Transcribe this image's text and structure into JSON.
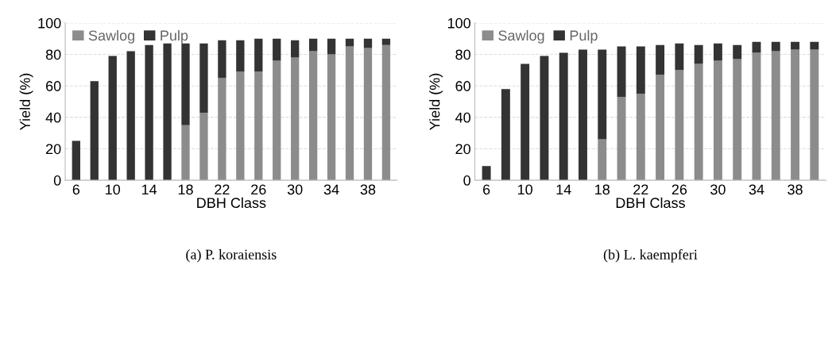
{
  "chart_data": [
    {
      "type": "bar",
      "stacked": true,
      "xlabel": "DBH Class",
      "ylabel": "Yield (%)",
      "annotations": [
        "(a) P. koraiensis"
      ],
      "categories": [
        "6",
        null,
        "10",
        null,
        "14",
        null,
        "18",
        null,
        "22",
        null,
        "26",
        null,
        "30",
        null,
        "34",
        null,
        "38",
        null
      ],
      "series": [
        {
          "name": "Sawlog",
          "color": "#8c8c8c",
          "values": [
            0,
            0,
            0,
            0,
            0,
            0,
            35,
            43,
            65,
            69,
            69,
            76,
            78,
            82,
            80,
            85,
            84,
            86
          ]
        },
        {
          "name": "Pulp",
          "color": "#333333",
          "values": [
            25,
            63,
            79,
            82,
            86,
            87,
            52,
            44,
            24,
            20,
            21,
            14,
            11,
            8,
            10,
            5,
            6,
            4
          ]
        }
      ],
      "ylim": [
        0,
        100
      ],
      "yticks": [
        0,
        20,
        40,
        60,
        80,
        100
      ],
      "grid": "y",
      "legend": "top left"
    },
    {
      "type": "bar",
      "stacked": true,
      "xlabel": "DBH Class",
      "ylabel": "Yield (%)",
      "annotations": [
        "(b) L. kaempferi"
      ],
      "categories": [
        "6",
        null,
        "10",
        null,
        "14",
        null,
        "18",
        null,
        "22",
        null,
        "26",
        null,
        "30",
        null,
        "34",
        null,
        "38",
        null
      ],
      "series": [
        {
          "name": "Sawlog",
          "color": "#8c8c8c",
          "values": [
            0,
            0,
            0,
            0,
            0,
            0,
            26,
            53,
            55,
            67,
            70,
            74,
            76,
            77,
            81,
            82,
            83,
            83
          ]
        },
        {
          "name": "Pulp",
          "color": "#333333",
          "values": [
            9,
            58,
            74,
            79,
            81,
            83,
            57,
            32,
            30,
            19,
            17,
            12,
            11,
            9,
            7,
            6,
            5,
            5
          ]
        }
      ],
      "ylim": [
        0,
        100
      ],
      "yticks": [
        0,
        20,
        40,
        60,
        80,
        100
      ],
      "grid": "y",
      "legend": "top left"
    }
  ]
}
